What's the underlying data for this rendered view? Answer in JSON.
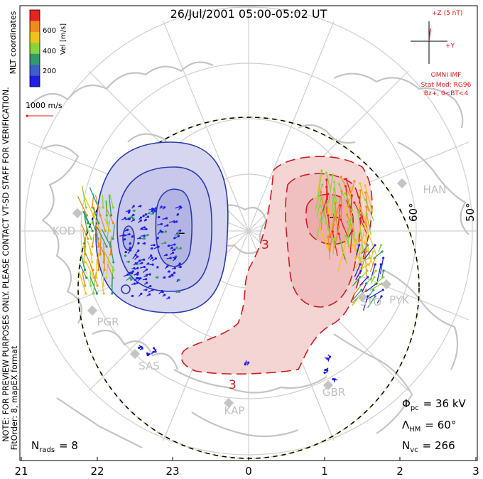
{
  "title": "26/Jul/2001 05:00-05:02 UT",
  "coord_label": "MLT coordinates",
  "notice_line1": "NOTE: FOR PREVIEW PURPOSES ONLY. PLEASE CONTACT VT-SD STAFF FOR VERIFICATION.",
  "notice_line2": "FitOrder: 8, mapEX format",
  "colorbar": {
    "label": "Vel [m/s]",
    "ticks": [
      "600",
      "400",
      "200"
    ],
    "colors": [
      "#e8231e",
      "#f08a1c",
      "#f2c21c",
      "#88d43a",
      "#2f9a6a",
      "#3b60c8",
      "#1e1ee6"
    ]
  },
  "velocity_scale": "1000 m/s",
  "imf": {
    "z_label": "+Z (5 nT)",
    "y_label": "+Y",
    "source": "OMNI IMF",
    "stat_model": "Stat Mod: RG96",
    "condition": "Bz+, 0<BT<4"
  },
  "lat_labels": [
    "60°",
    "50°"
  ],
  "contour_label": "3",
  "stations": [
    {
      "code": "HAN"
    },
    {
      "code": "KOD"
    },
    {
      "code": "PGR"
    },
    {
      "code": "SAS"
    },
    {
      "code": "KAP"
    },
    {
      "code": "GBR"
    },
    {
      "code": "STO"
    },
    {
      "code": "PYK"
    }
  ],
  "stats": {
    "phi_pc": "Φ",
    "phi_sub": "pc",
    "phi_value": "= 36 kV",
    "lambda": "Λ",
    "lambda_sub": "HM",
    "lambda_value": "= 60°",
    "nvc": "N",
    "nvc_sub": "vc",
    "nvc_value": "= 266",
    "nrads": "N",
    "nrads_sub": "rads",
    "nrads_value": "= 8"
  },
  "mlt_axis": [
    "21",
    "22",
    "23",
    "0",
    "1",
    "2",
    "3"
  ],
  "cell_symbols": {
    "min": "−",
    "max": "+"
  },
  "colors": {
    "negative_cell": "#2a3ab0",
    "negative_fill": "#c8c8ec",
    "positive_cell": "#c81e1e",
    "positive_fill": "#f3c8c8",
    "imf_red": "#e01818",
    "land": "#c8c8c8",
    "grid": "#c8c8c8"
  }
}
